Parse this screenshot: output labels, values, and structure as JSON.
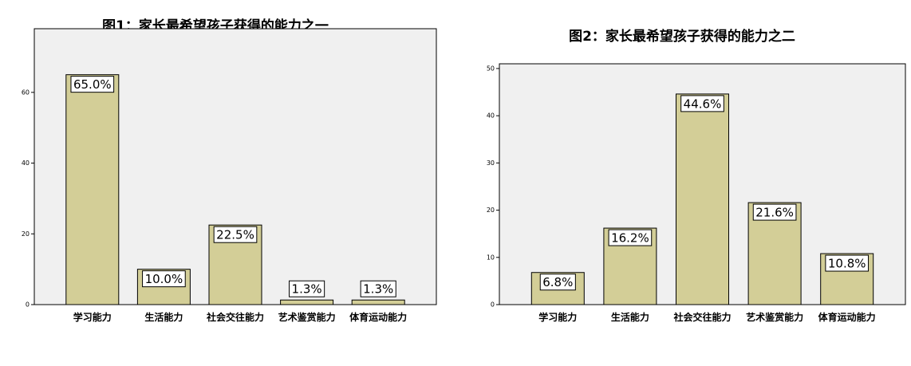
{
  "chart_data": [
    {
      "type": "bar",
      "title": "图1：家长最希望孩子获得的能力之一",
      "categories": [
        "学习能力",
        "生活能力",
        "社会交往能力",
        "艺术鉴赏能力",
        "体育运动能力"
      ],
      "values": [
        65.0,
        10.0,
        22.5,
        1.3,
        1.3
      ],
      "value_labels": [
        "65.0%",
        "10.0%",
        "22.5%",
        "1.3%",
        "1.3%"
      ],
      "color": "#d3ce97",
      "ylim": [
        0,
        78
      ],
      "yticks": [
        0,
        20,
        40,
        60
      ]
    },
    {
      "type": "bar",
      "title": "图2：家长最希望孩子获得的能力之二",
      "categories": [
        "学习能力",
        "生活能力",
        "社会交往能力",
        "艺术鉴赏能力",
        "体育运动能力"
      ],
      "values": [
        6.8,
        16.2,
        44.6,
        21.6,
        10.8
      ],
      "value_labels": [
        "6.8%",
        "16.2%",
        "44.6%",
        "21.6%",
        "10.8%"
      ],
      "color": "#d3ce97",
      "ylim": [
        0,
        51
      ],
      "yticks": [
        0,
        10,
        20,
        30,
        40,
        50
      ]
    }
  ]
}
